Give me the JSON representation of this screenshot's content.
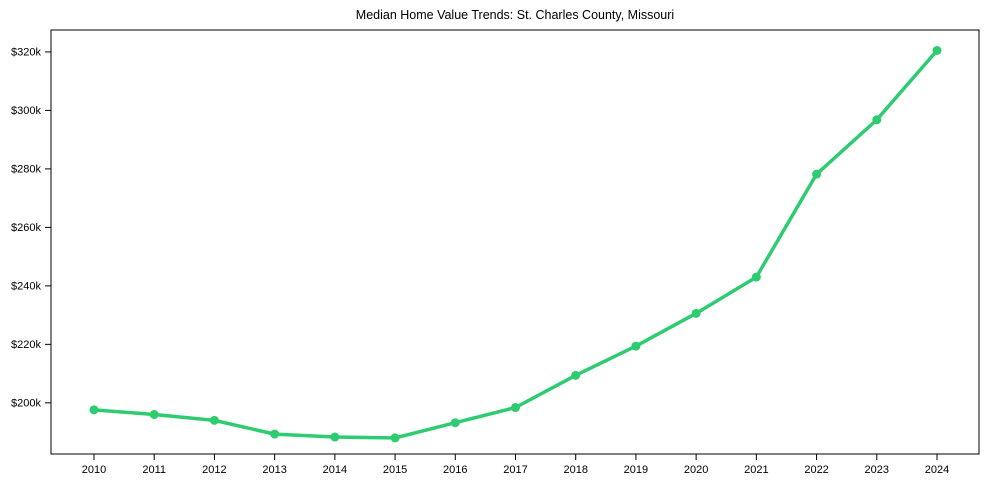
{
  "chart_data": {
    "type": "line",
    "title": "Median Home Value Trends: St. Charles County, Missouri",
    "series_name": "Median Home Value",
    "x_label": "",
    "y_label": "",
    "categories": [
      2010,
      2011,
      2012,
      2013,
      2014,
      2015,
      2016,
      2017,
      2018,
      2019,
      2020,
      2021,
      2022,
      2023,
      2024
    ],
    "values": [
      197600,
      196000,
      194000,
      189300,
      188300,
      188000,
      193200,
      198400,
      209400,
      219400,
      230600,
      243000,
      278200,
      296800,
      320500
    ],
    "y_ticks": [
      200000,
      220000,
      240000,
      260000,
      280000,
      300000,
      320000
    ],
    "y_tick_labels": [
      "$200k",
      "$220k",
      "$240k",
      "$260k",
      "$280k",
      "$300k",
      "$320k"
    ],
    "ylim": [
      182500,
      327500
    ],
    "grid": false,
    "legend": "none",
    "line_color": "#2ecc71",
    "marker": "circle",
    "marker_color": "#2ecc71",
    "axis_color": "#000000",
    "background_color": "#ffffff"
  }
}
